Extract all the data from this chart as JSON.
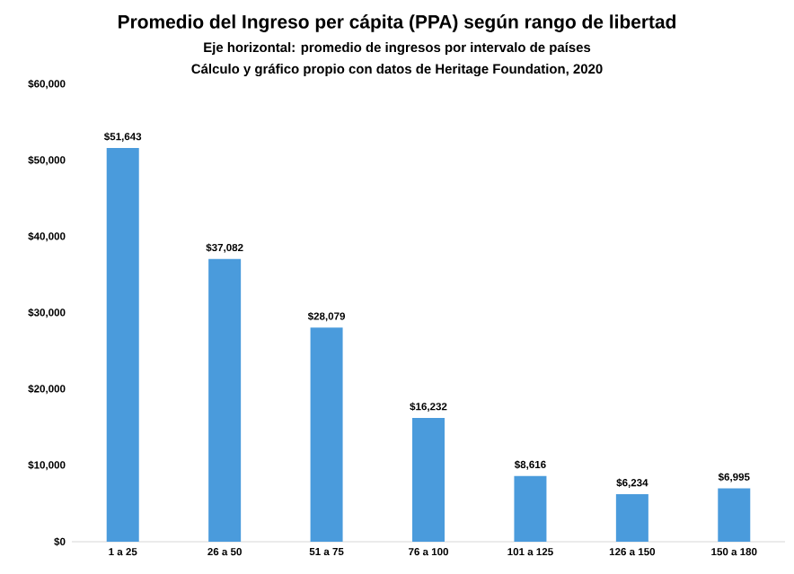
{
  "chart_data": {
    "type": "bar",
    "title": "Promedio del Ingreso per cápita (PPA) según rango de libertad",
    "subtitle": "Eje horizontal: promedio de ingresos por intervalo de países",
    "annotations": [
      "Cálculo y gráfico propio con datos de Heritage Foundation, 2020"
    ],
    "categories": [
      "1 a 25",
      "26 a 50",
      "51 a 75",
      "76 a 100",
      "101 a 125",
      "126 a 150",
      "150 a 180"
    ],
    "values": [
      51643,
      37082,
      28079,
      16232,
      8616,
      6234,
      6995
    ],
    "value_labels": [
      "$51,643",
      "$37,082",
      "$28,079",
      "$16,232",
      "$8,616",
      "$6,234",
      "$6,995"
    ],
    "color": "#4a9bdc",
    "ylim": [
      0,
      60000
    ],
    "yticks": [
      {
        "value": 0,
        "label": "$0"
      },
      {
        "value": 10000,
        "label": "$10,000"
      },
      {
        "value": 20000,
        "label": "$20,000"
      },
      {
        "value": 30000,
        "label": "$30,000"
      },
      {
        "value": 40000,
        "label": "$40,000"
      },
      {
        "value": 50000,
        "label": "$50,000"
      },
      {
        "value": 60000,
        "label": "$60,000"
      }
    ]
  }
}
